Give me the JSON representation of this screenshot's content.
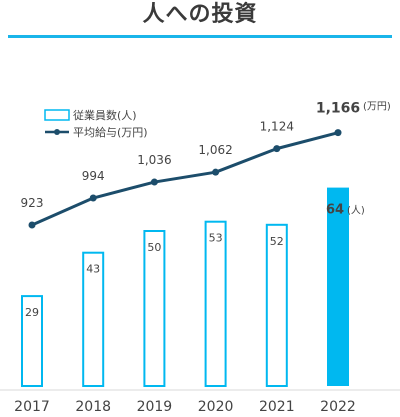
{
  "title": "人への投資",
  "colors": {
    "bar_accent": "#00b8f0",
    "bar_outline": "#00b8f0",
    "line": "#1c4d6b",
    "rule": "#19b5ea",
    "text": "#444444"
  },
  "chart_data": {
    "type": "bar",
    "categories": [
      "2017",
      "2018",
      "2019",
      "2020",
      "2021",
      "2022"
    ],
    "series": [
      {
        "name": "従業員数(人)",
        "kind": "bar",
        "values": [
          29,
          43,
          50,
          53,
          52,
          64
        ],
        "last_unit": "(人)",
        "last_highlighted": true
      },
      {
        "name": "平均給与(万円)",
        "kind": "line",
        "values": [
          923,
          994,
          1036,
          1062,
          1124,
          1166
        ],
        "value_labels": [
          "923",
          "994",
          "1,036",
          "1,062",
          "1,124",
          "1,166"
        ],
        "last_unit": "(万円)"
      }
    ],
    "legend_position": "top-left",
    "grid": false
  }
}
